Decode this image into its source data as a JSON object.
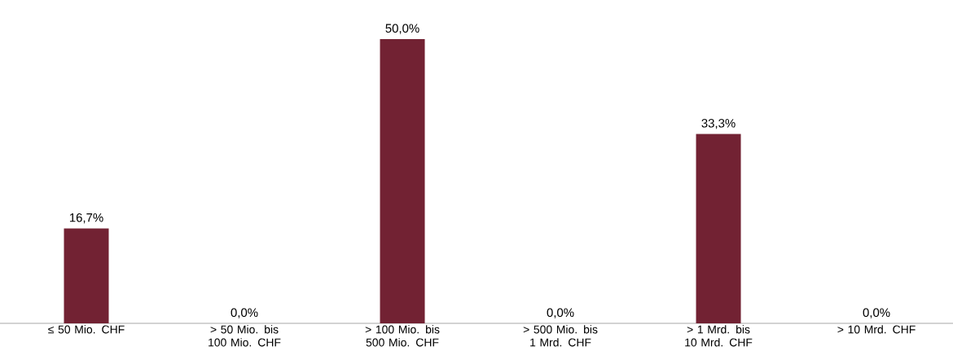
{
  "chart_data": {
    "type": "bar",
    "categories": [
      "≤ 50 Mio. CHF",
      "> 50 Mio. bis 100 Mio. CHF",
      "> 100 Mio. bis 500 Mio. CHF",
      "> 500 Mio. bis 1 Mrd. CHF",
      "> 1 Mrd. bis 10 Mrd. CHF",
      "> 10 Mrd. CHF"
    ],
    "values": [
      16.7,
      0,
      50,
      0,
      33.3,
      0
    ],
    "value_labels": [
      "16,7%",
      "0,0%",
      "50,0%",
      "0,0%",
      "33,3%",
      "0,0%"
    ],
    "color": "#722233"
  }
}
